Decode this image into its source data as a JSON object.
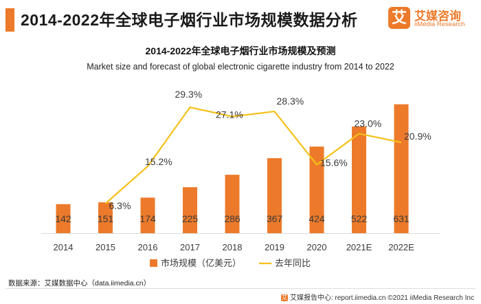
{
  "page": {
    "title": "2014-2022年全球电子烟行业市场规模数据分析"
  },
  "logo": {
    "mark": "艾",
    "name_cn": "艾媒咨询",
    "name_en": "iiMedia Research"
  },
  "colors": {
    "accent": "#ec7a2a",
    "bar": "#ec7a2a",
    "line": "#f5c019"
  },
  "chart_data": {
    "type": "bar",
    "title": "2014-2022年全球电子烟行业市场规模及预测",
    "subtitle": "Market size and forecast of global electronic cigarette industry from 2014 to 2022",
    "categories": [
      "2014",
      "2015",
      "2016",
      "2017",
      "2018",
      "2019",
      "2020",
      "2021E",
      "2022E"
    ],
    "series": [
      {
        "name": "市场规模（亿美元）",
        "type": "bar",
        "values": [
          142,
          151,
          174,
          225,
          286,
          367,
          424,
          522,
          631
        ],
        "labels": [
          "142",
          "151",
          "174",
          "225",
          "286",
          "367",
          "424",
          "522",
          "631"
        ]
      },
      {
        "name": "去年同比",
        "type": "line",
        "values": [
          null,
          6.3,
          15.2,
          29.3,
          27.1,
          28.3,
          15.6,
          23.0,
          20.9
        ],
        "labels": [
          "",
          "6.3%",
          "15.2%",
          "29.3%",
          "27.1%",
          "28.3%",
          "15.6%",
          "23.0%",
          "20.9%"
        ]
      }
    ],
    "ylim_bar": [
      0,
      660
    ],
    "ylim_line": [
      -20,
      45
    ],
    "legend": "bottom-center",
    "grid": false
  },
  "source": "数据来源：艾媒数据中心（data.iimedia.cn）",
  "footer": {
    "text": "艾媒报告中心: report.iimedia.cn   ©2021  iiMedia Research  Inc"
  }
}
